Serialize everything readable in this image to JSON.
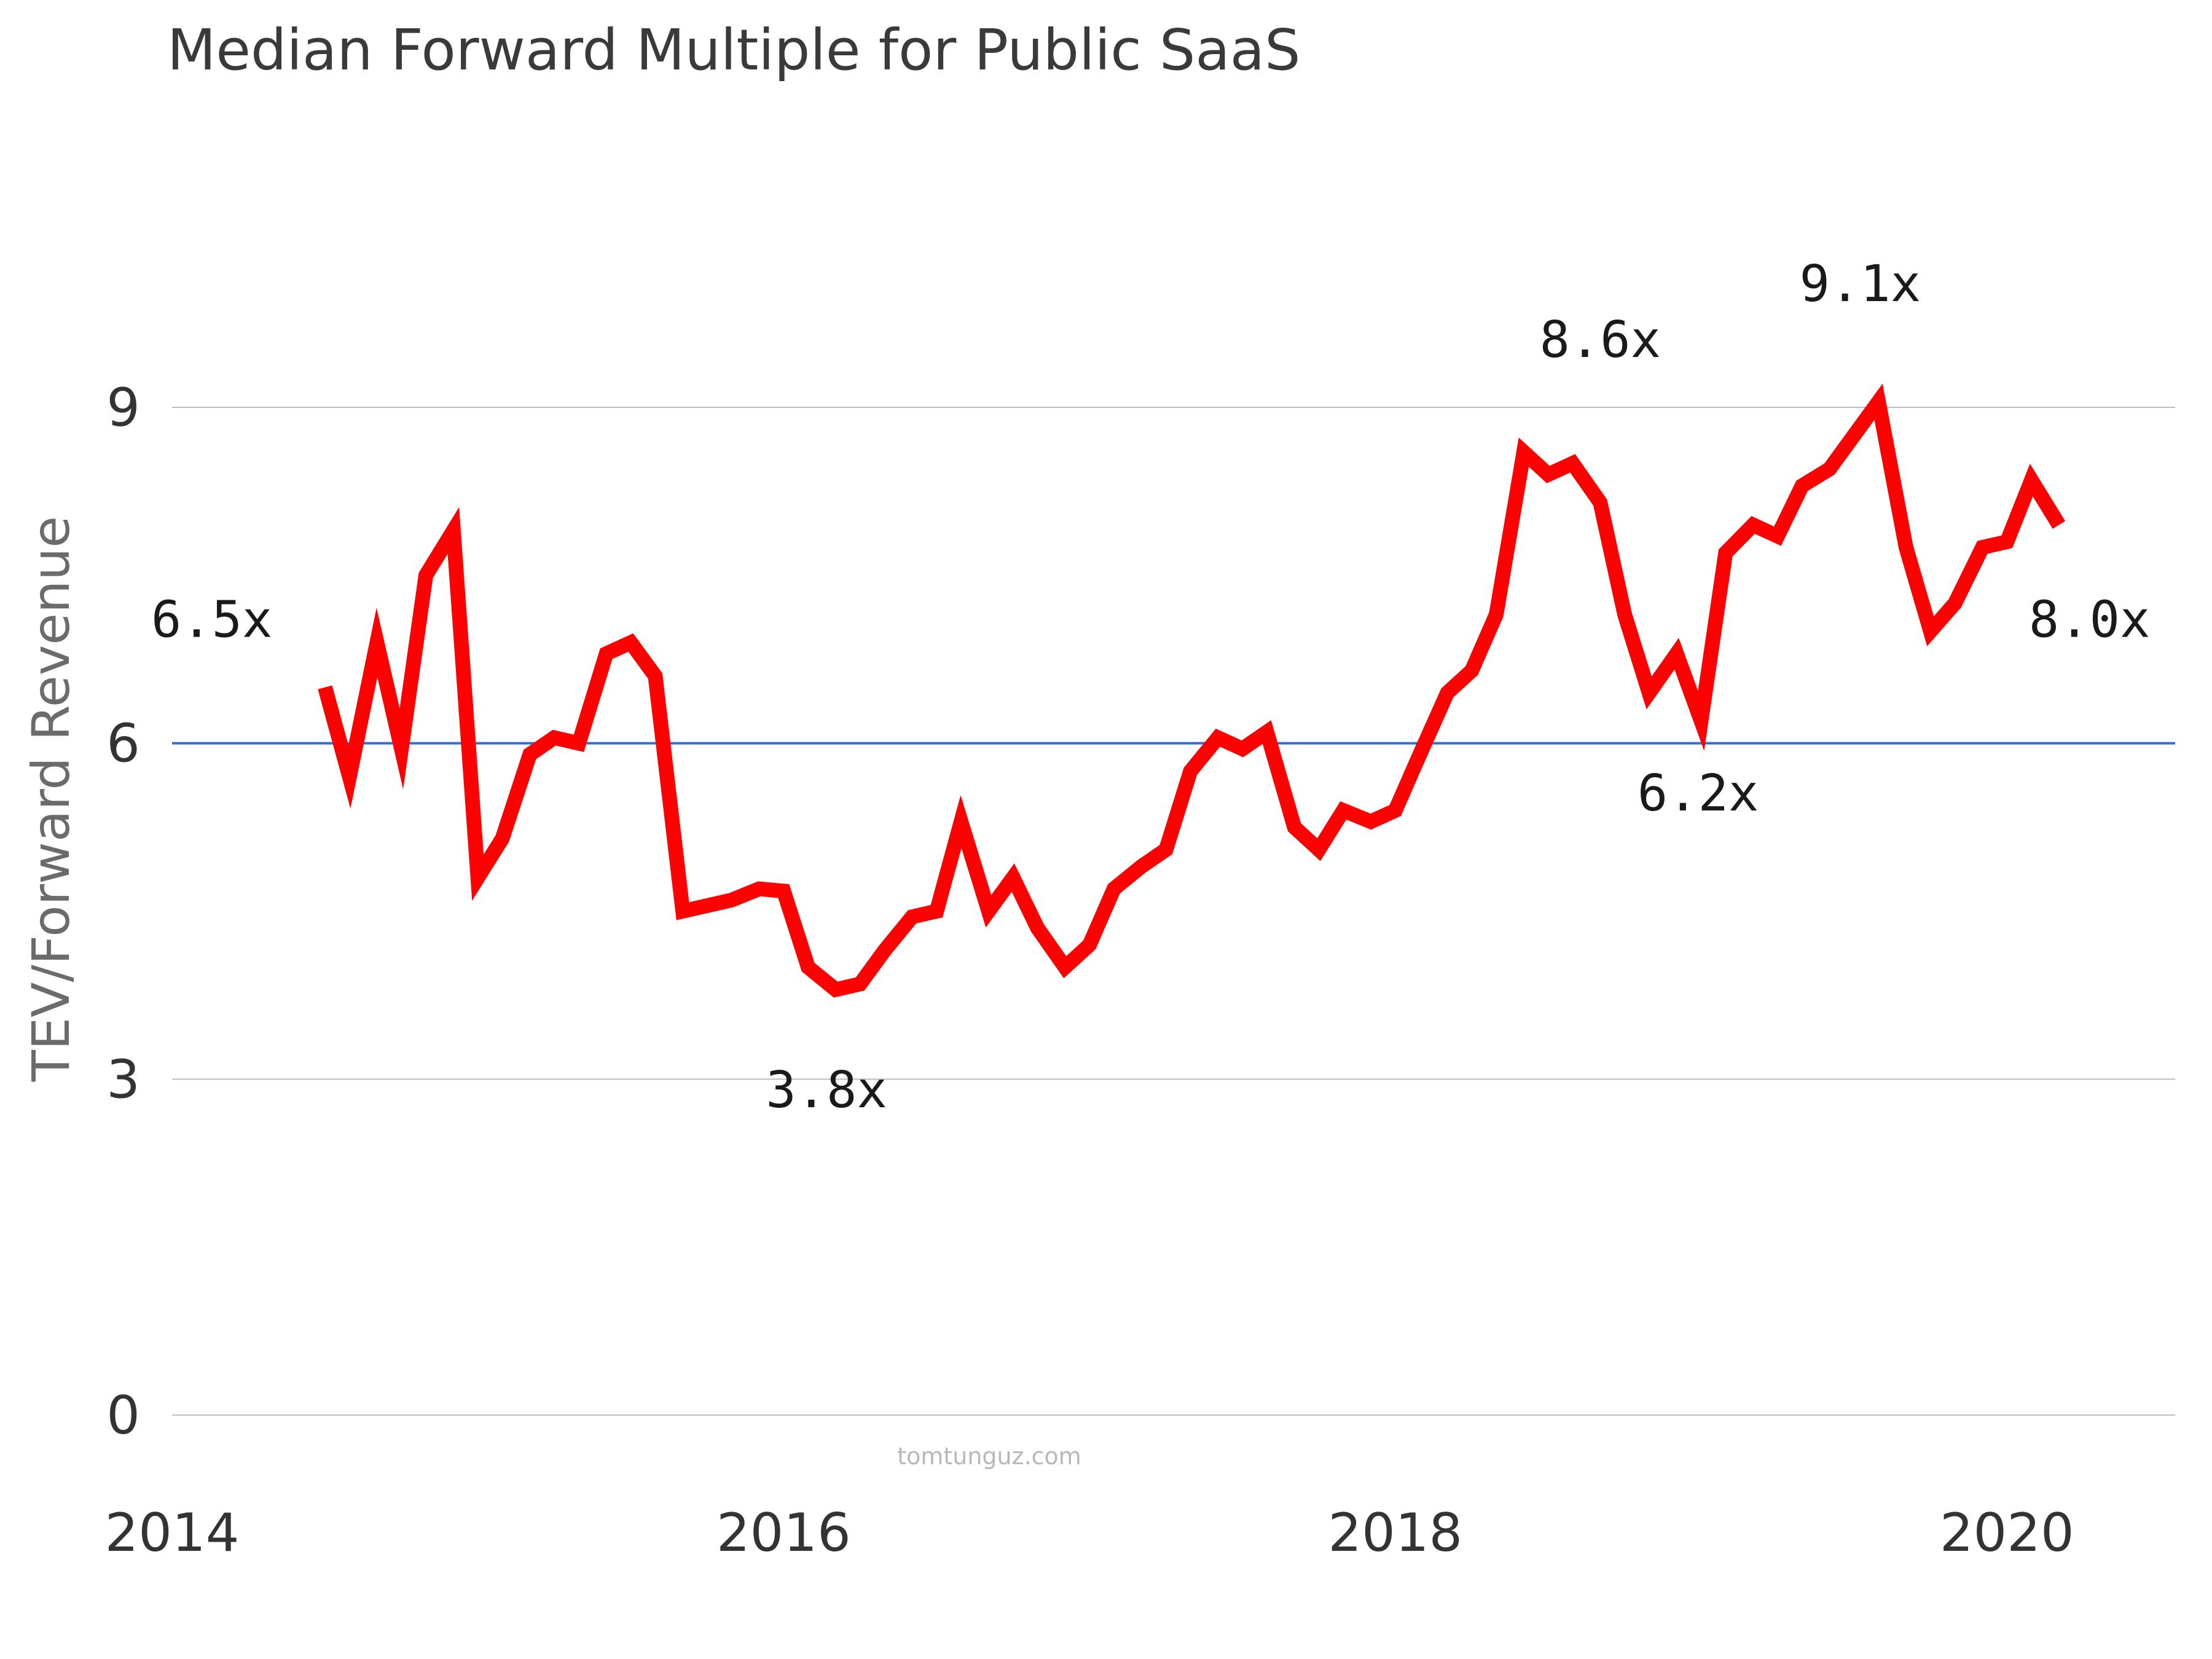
{
  "chart_data": {
    "type": "line",
    "title": "Median Forward Multiple for Public SaaS",
    "ylabel": "TEV/Forward Revenue",
    "xlabel": "",
    "xlim": [
      2014,
      2020.55
    ],
    "ylim": [
      0,
      9
    ],
    "y_ticks": [
      "0",
      "3",
      "6",
      "9"
    ],
    "x_ticks": [
      "2014",
      "2016",
      "2018",
      "2020"
    ],
    "grid": true,
    "legend": "none",
    "watermark": "tomtunguz.com",
    "reference_line": {
      "value": 6,
      "color": "#2f6fd6"
    },
    "series": [
      {
        "color": "#ff0000",
        "x": [
          2014.5,
          2014.58,
          2014.67,
          2014.75,
          2014.83,
          2014.92,
          2015.0,
          2015.08,
          2015.17,
          2015.25,
          2015.33,
          2015.42,
          2015.5,
          2015.58,
          2015.67,
          2015.75,
          2015.83,
          2015.92,
          2016.0,
          2016.08,
          2016.17,
          2016.25,
          2016.33,
          2016.42,
          2016.5,
          2016.58,
          2016.67,
          2016.75,
          2016.83,
          2016.92,
          2017.0,
          2017.08,
          2017.17,
          2017.25,
          2017.33,
          2017.42,
          2017.5,
          2017.58,
          2017.67,
          2017.75,
          2017.83,
          2017.92,
          2018.0,
          2018.08,
          2018.17,
          2018.25,
          2018.33,
          2018.42,
          2018.5,
          2018.58,
          2018.67,
          2018.75,
          2018.83,
          2018.92,
          2019.0,
          2019.08,
          2019.17,
          2019.25,
          2019.33,
          2019.42,
          2019.5,
          2019.58,
          2019.67,
          2019.75,
          2019.83,
          2019.92,
          2020.0,
          2020.08,
          2020.17
        ],
        "y": [
          6.5,
          5.7,
          6.9,
          5.95,
          7.5,
          7.9,
          4.8,
          5.15,
          5.9,
          6.05,
          6.0,
          6.8,
          6.9,
          6.6,
          4.5,
          4.55,
          4.6,
          4.7,
          4.68,
          4.0,
          3.8,
          3.85,
          4.15,
          4.45,
          4.5,
          5.3,
          4.5,
          4.8,
          4.35,
          4.0,
          4.2,
          4.7,
          4.9,
          5.05,
          5.75,
          6.05,
          5.95,
          6.1,
          5.25,
          5.05,
          5.4,
          5.3,
          5.4,
          5.9,
          6.45,
          6.65,
          7.15,
          8.6,
          8.4,
          8.5,
          8.15,
          7.15,
          6.45,
          6.8,
          6.2,
          7.7,
          7.95,
          7.85,
          8.3,
          8.45,
          8.75,
          9.05,
          7.75,
          7.0,
          7.25,
          7.75,
          7.8,
          8.35,
          7.95
        ]
      }
    ],
    "annotations": [
      {
        "text": "6.5x",
        "x": 2014.13,
        "y": 6.95
      },
      {
        "text": "3.8x",
        "x": 2016.14,
        "y": 2.75
      },
      {
        "text": "8.6x",
        "x": 2018.67,
        "y": 9.45
      },
      {
        "text": "6.2x",
        "x": 2018.99,
        "y": 5.4
      },
      {
        "text": "9.1x",
        "x": 2019.52,
        "y": 9.95
      },
      {
        "text": "8.0x",
        "x": 2020.27,
        "y": 6.95
      }
    ]
  }
}
